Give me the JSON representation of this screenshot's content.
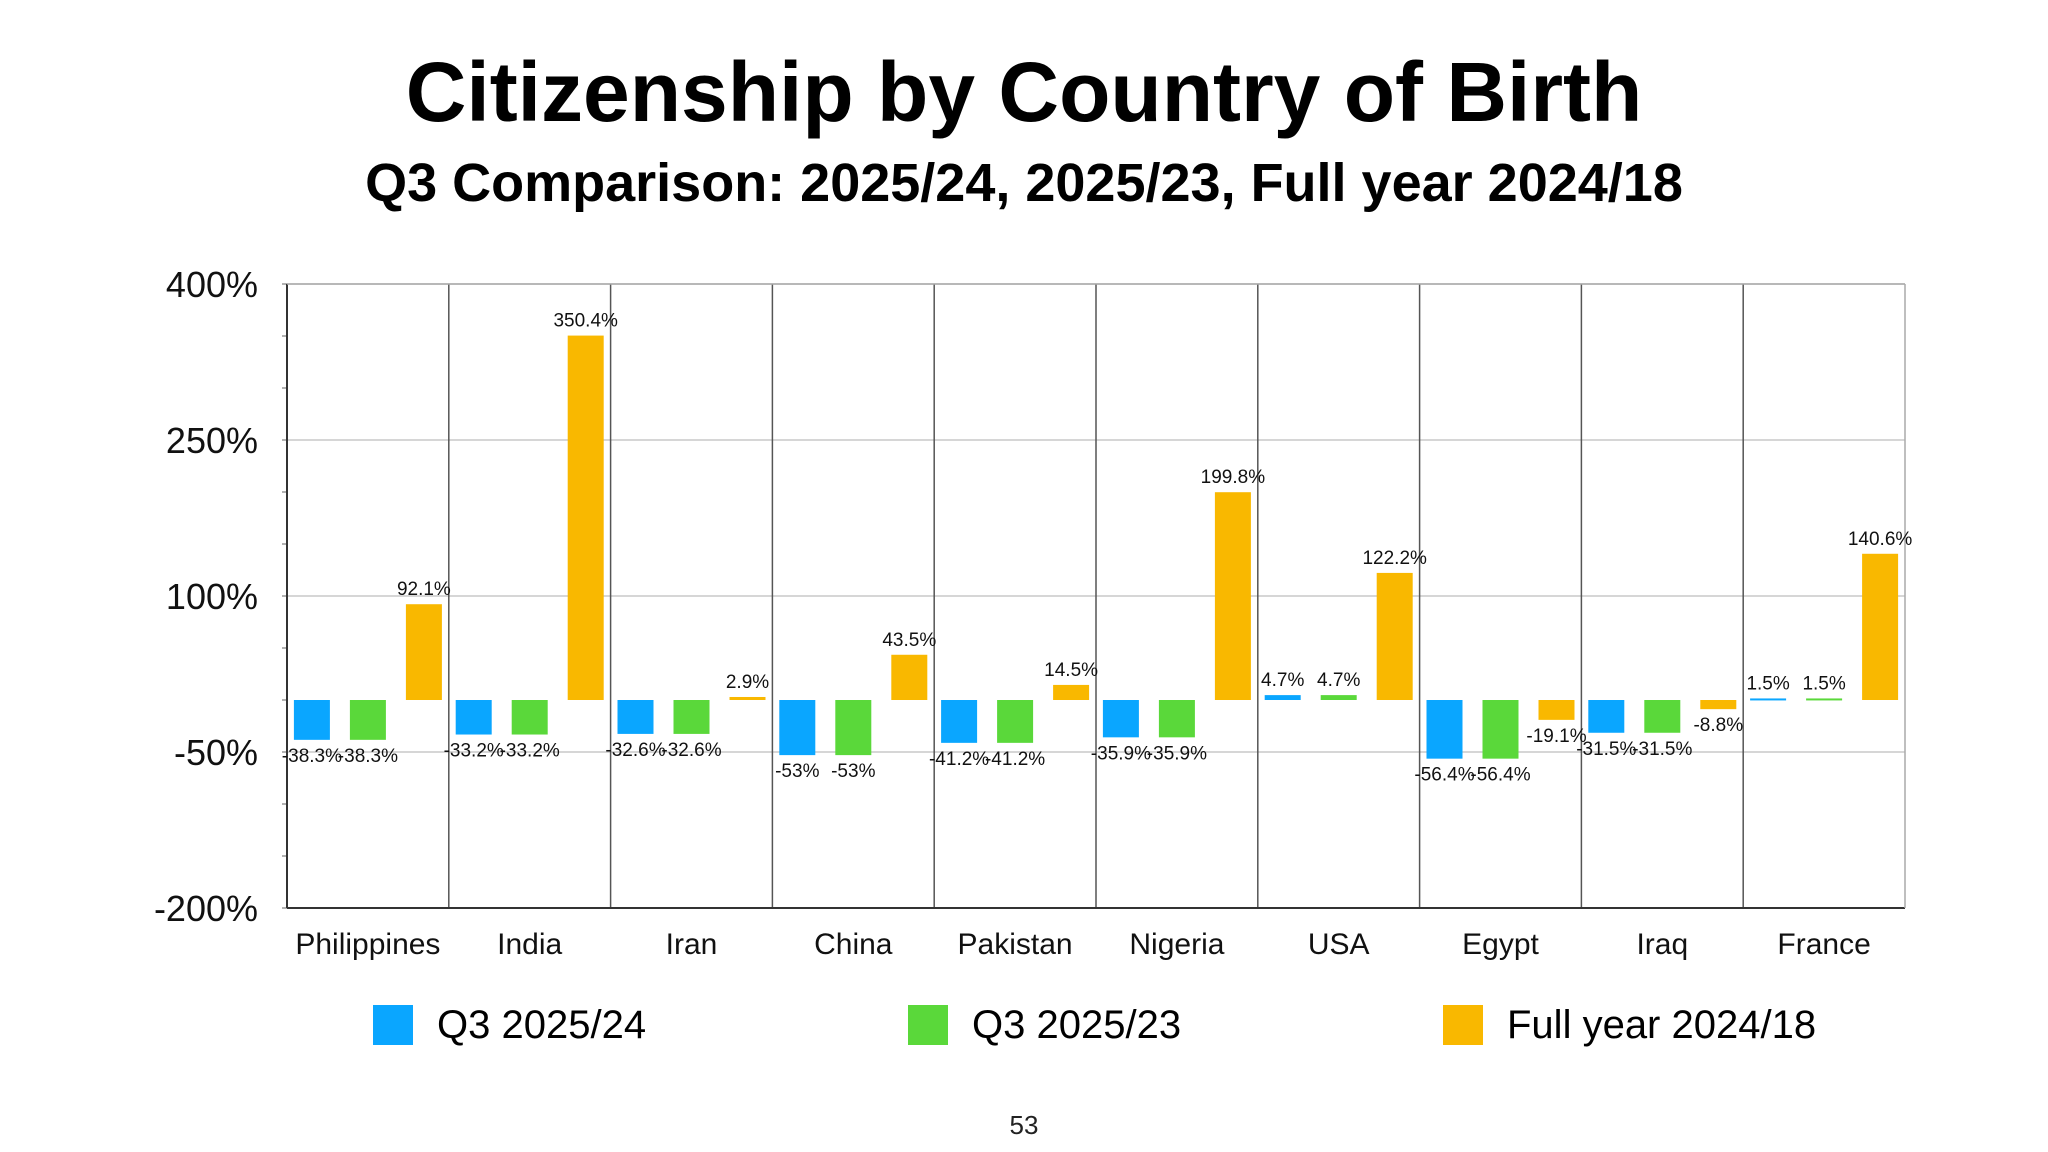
{
  "slide": {
    "title": "Citizenship by Country of Birth",
    "subtitle": "Q3 Comparison: 2025/24, 2025/23, Full year 2024/18",
    "page_number": "53"
  },
  "chart_data": {
    "type": "bar",
    "title": "Citizenship by Country of Birth",
    "subtitle": "Q3 Comparison: 2025/24, 2025/23, Full year 2024/18",
    "xlabel": "",
    "ylabel": "",
    "ylim": [
      -200,
      400
    ],
    "y_ticks": [
      -200,
      -50,
      100,
      250,
      400
    ],
    "y_tick_labels": [
      "-200%",
      "-50%",
      "100%",
      "250%",
      "400%"
    ],
    "grid": true,
    "legend_position": "bottom",
    "categories": [
      "Philippines",
      "India",
      "Iran",
      "China",
      "Pakistan",
      "Nigeria",
      "USA",
      "Egypt",
      "Iraq",
      "France"
    ],
    "series": [
      {
        "name": "Q3 2025/24",
        "color": "#0aa6ff",
        "values": [
          -38.3,
          -33.2,
          -32.6,
          -53,
          -41.2,
          -35.9,
          4.7,
          -56.4,
          -31.5,
          1.5
        ],
        "labels": [
          "-38.3%",
          "-33.2%",
          "-32.6%",
          "-53%",
          "-41.2%",
          "-35.9%",
          "4.7%",
          "-56.4%",
          "-31.5%",
          "1.5%"
        ]
      },
      {
        "name": "Q3 2025/23",
        "color": "#5ad83a",
        "values": [
          -38.3,
          -33.2,
          -32.6,
          -53,
          -41.2,
          -35.9,
          4.7,
          -56.4,
          -31.5,
          1.5
        ],
        "labels": [
          "-38.3%",
          "-33.2%",
          "-32.6%",
          "-53%",
          "-41.2%",
          "-35.9%",
          "4.7%",
          "-56.4%",
          "-31.5%",
          "1.5%"
        ]
      },
      {
        "name": "Full year 2024/18",
        "color": "#f9b800",
        "values": [
          92.1,
          350.4,
          2.9,
          43.5,
          14.5,
          199.8,
          122.2,
          -19.1,
          -8.8,
          140.6
        ],
        "labels": [
          "92.1%",
          "350.4%",
          "2.9%",
          "43.5%",
          "14.5%",
          "199.8%",
          "122.2%",
          "-19.1%",
          "-8.8%",
          "140.6%"
        ]
      }
    ]
  }
}
